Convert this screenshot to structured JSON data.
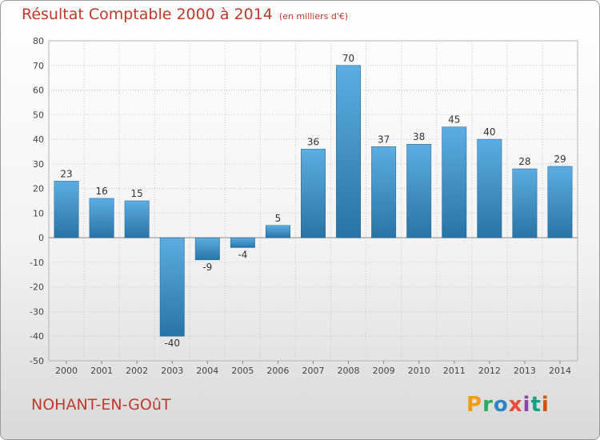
{
  "page": {
    "title": "Résultat Comptable 2000 à 2014",
    "subtitle": "(en milliers d'€)",
    "commune": "NOHANT-EN-GOûT",
    "logo": "Proxiti",
    "logo_colors": [
      "#f39c12",
      "#27ae60",
      "#2e86c1",
      "#e74c3c",
      "#8e44ad",
      "#16a085",
      "#d35400"
    ]
  },
  "chart_data": {
    "type": "bar",
    "title": "Résultat Comptable 2000 à 2014",
    "ylabel": "(en milliers d'€)",
    "xlabel": "",
    "categories": [
      "2000",
      "2001",
      "2002",
      "2003",
      "2004",
      "2005",
      "2006",
      "2007",
      "2008",
      "2009",
      "2010",
      "2011",
      "2012",
      "2013",
      "2014"
    ],
    "values": [
      23,
      16,
      15,
      -40,
      -9,
      -4,
      5,
      36,
      70,
      37,
      38,
      45,
      40,
      28,
      29
    ],
    "ylim": [
      -50,
      80
    ],
    "yticks": [
      80,
      70,
      60,
      50,
      40,
      30,
      20,
      10,
      0,
      -10,
      -20,
      -30,
      -40,
      -50
    ],
    "grid": true,
    "colors": {
      "bar_light": "#5dade2",
      "bar_dark": "#2874a6",
      "grid": "#c9c9c9"
    }
  }
}
